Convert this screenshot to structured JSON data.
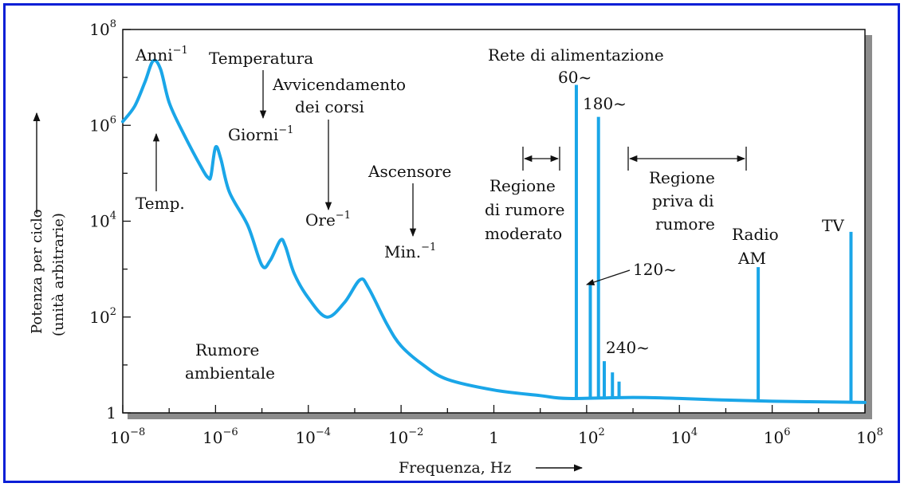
{
  "colors": {
    "frame": "#0a1fd6",
    "curve": "#1aa6e8",
    "text": "#111111",
    "shadow": "#8c8c8c"
  },
  "chart_data": {
    "type": "line",
    "x_scale": "log",
    "y_scale": "log",
    "xlim": [
      1e-08,
      100000000.0
    ],
    "ylim": [
      1,
      100000000.0
    ],
    "xlabel": "Frequenza, Hz",
    "ylabel_line1": "Potenza per ciclo",
    "ylabel_line2": "(unità arbitrarie)",
    "x_ticks": [
      {
        "value": 1e-08,
        "base": "10",
        "exp": "−8"
      },
      {
        "value": 1e-06,
        "base": "10",
        "exp": "−6"
      },
      {
        "value": 0.0001,
        "base": "10",
        "exp": "−4"
      },
      {
        "value": 0.01,
        "base": "10",
        "exp": "−2"
      },
      {
        "value": 1,
        "base": "1",
        "exp": ""
      },
      {
        "value": 100.0,
        "base": "10",
        "exp": "2"
      },
      {
        "value": 10000.0,
        "base": "10",
        "exp": "4"
      },
      {
        "value": 1000000.0,
        "base": "10",
        "exp": "6"
      },
      {
        "value": 100000000.0,
        "base": "10",
        "exp": "8"
      }
    ],
    "y_ticks": [
      {
        "value": 1,
        "base": "1",
        "exp": ""
      },
      {
        "value": 100.0,
        "base": "10",
        "exp": "2"
      },
      {
        "value": 10000.0,
        "base": "10",
        "exp": "4"
      },
      {
        "value": 1000000.0,
        "base": "10",
        "exp": "6"
      },
      {
        "value": 100000000.0,
        "base": "10",
        "exp": "8"
      }
    ],
    "series": [
      {
        "points": [
          [
            1e-08,
            1200000.0
          ],
          [
            1.8e-08,
            2500000.0
          ],
          [
            3e-08,
            8000000.0
          ],
          [
            4.5e-08,
            22000000.0
          ],
          [
            6.5e-08,
            15000000.0
          ],
          [
            1e-07,
            3000000.0
          ],
          [
            2e-07,
            700000.0
          ],
          [
            5e-07,
            130000.0
          ],
          [
            7e-07,
            80000.0
          ],
          [
            8e-07,
            90000.0
          ],
          [
            1e-06,
            350000.0
          ],
          [
            1.3e-06,
            200000.0
          ],
          [
            2e-06,
            40000.0
          ],
          [
            5e-06,
            8000.0
          ],
          [
            1e-05,
            1200.0
          ],
          [
            1.5e-05,
            1500.0
          ],
          [
            2.5e-05,
            4000.0
          ],
          [
            3.2e-05,
            3000.0
          ],
          [
            5e-05,
            800.0
          ],
          [
            0.0001,
            250.0
          ],
          [
            0.00025,
            100.0
          ],
          [
            0.0006,
            200.0
          ],
          [
            0.0013,
            600.0
          ],
          [
            0.002,
            400.0
          ],
          [
            0.005,
            70
          ],
          [
            0.01,
            25
          ],
          [
            0.03,
            10
          ],
          [
            0.1,
            5
          ],
          [
            1,
            3
          ],
          [
            10,
            2.3
          ],
          [
            40,
            2
          ],
          [
            1000.0,
            2.1
          ],
          [
            10000.0,
            2
          ],
          [
            100000.0,
            1.85
          ],
          [
            1000000.0,
            1.75
          ],
          [
            10000000.0,
            1.7
          ],
          [
            100000000.0,
            1.65
          ]
        ]
      }
    ],
    "spikes": [
      {
        "x": 60,
        "y": 7000000.0
      },
      {
        "x": 120,
        "y": 500.0
      },
      {
        "x": 180,
        "y": 1500000.0
      },
      {
        "x": 240,
        "y": 12
      },
      {
        "x": 360,
        "y": 7
      },
      {
        "x": 500,
        "y": 4.5
      },
      {
        "x": 500000.0,
        "y": 1100.0
      },
      {
        "x": 50000000.0,
        "y": 6000.0
      }
    ],
    "annotations": {
      "anni": {
        "text": "Anni",
        "exp": "−1"
      },
      "temperatura": "Temperatura",
      "avvicendamento_1": "Avvicendamento",
      "avvicendamento_2": "dei corsi",
      "giorni": {
        "text": "Giorni",
        "exp": "−1"
      },
      "temp": "Temp.",
      "ascensore": "Ascensore",
      "ore": {
        "text": "Ore",
        "exp": "−1"
      },
      "min": {
        "text": "Min.",
        "exp": "−1"
      },
      "rete": "Rete di alimentazione",
      "f60": "60~",
      "f180": "180~",
      "f120": "120~",
      "f240": "240~",
      "moderato_1": "Regione",
      "moderato_2": "di rumore",
      "moderato_3": "moderato",
      "priva_1": "Regione",
      "priva_2": "priva di",
      "priva_3": "rumore",
      "radio_1": "Radio",
      "radio_2": "AM",
      "tv": "TV",
      "ambientale_1": "Rumore",
      "ambientale_2": "ambientale"
    }
  }
}
